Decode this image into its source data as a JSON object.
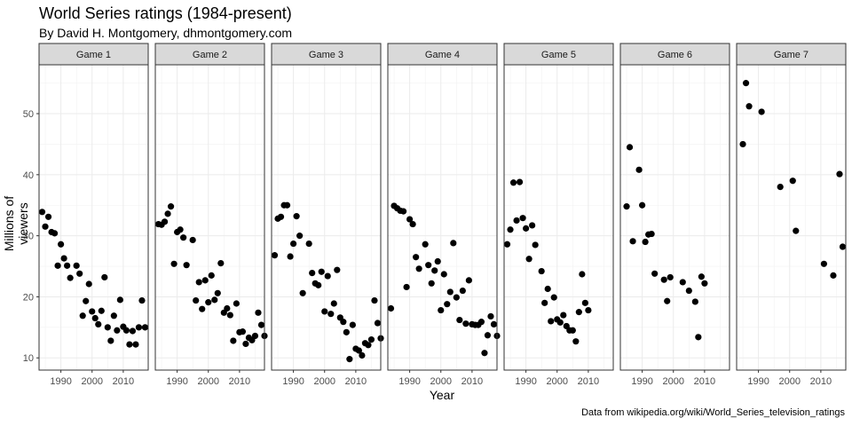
{
  "title": "World Series ratings (1984-present)",
  "subtitle": "By David H. Montgomery, dhmontgomery.com",
  "caption": "Data from wikipedia.org/wiki/World_Series_television_ratings",
  "chart_data": {
    "type": "scatter",
    "title": "World Series ratings (1984-present)",
    "xlabel": "Year",
    "ylabel": "Millions of viewers",
    "xlim": [
      1983,
      2018
    ],
    "ylim": [
      8,
      58
    ],
    "x_ticks": [
      1990,
      2000,
      2010
    ],
    "y_ticks": [
      10,
      20,
      30,
      40,
      50
    ],
    "grid": true,
    "facets": [
      {
        "name": "Game 1",
        "points": [
          [
            1984,
            33.9
          ],
          [
            1985,
            31.5
          ],
          [
            1986,
            33.1
          ],
          [
            1987,
            30.6
          ],
          [
            1988,
            30.4
          ],
          [
            1989,
            25.1
          ],
          [
            1990,
            28.6
          ],
          [
            1991,
            26.3
          ],
          [
            1992,
            25.1
          ],
          [
            1993,
            23.1
          ],
          [
            1995,
            25.1
          ],
          [
            1996,
            23.8
          ],
          [
            1997,
            16.9
          ],
          [
            1998,
            19.3
          ],
          [
            1999,
            22.1
          ],
          [
            2000,
            17.6
          ],
          [
            2001,
            16.5
          ],
          [
            2002,
            15.5
          ],
          [
            2003,
            17.7
          ],
          [
            2004,
            23.2
          ],
          [
            2005,
            15
          ],
          [
            2006,
            12.8
          ],
          [
            2007,
            16.9
          ],
          [
            2008,
            14.5
          ],
          [
            2009,
            19.5
          ],
          [
            2010,
            15.1
          ],
          [
            2011,
            14.5
          ],
          [
            2012,
            12.2
          ],
          [
            2013,
            14.4
          ],
          [
            2014,
            12.2
          ],
          [
            2015,
            15
          ],
          [
            2016,
            19.4
          ],
          [
            2017,
            15
          ]
        ]
      },
      {
        "name": "Game 2",
        "points": [
          [
            1984,
            31.9
          ],
          [
            1985,
            31.8
          ],
          [
            1986,
            32.3
          ],
          [
            1987,
            33.6
          ],
          [
            1988,
            34.8
          ],
          [
            1989,
            25.4
          ],
          [
            1990,
            30.6
          ],
          [
            1991,
            31
          ],
          [
            1992,
            29.7
          ],
          [
            1993,
            25.2
          ],
          [
            1995,
            29.3
          ],
          [
            1996,
            19.4
          ],
          [
            1997,
            22.4
          ],
          [
            1998,
            18
          ],
          [
            1999,
            22.7
          ],
          [
            2000,
            19.1
          ],
          [
            2001,
            23.5
          ],
          [
            2002,
            19.5
          ],
          [
            2003,
            20.6
          ],
          [
            2004,
            25.5
          ],
          [
            2005,
            17.4
          ],
          [
            2006,
            18.1
          ],
          [
            2007,
            17
          ],
          [
            2008,
            12.8
          ],
          [
            2009,
            18.9
          ],
          [
            2010,
            14.2
          ],
          [
            2011,
            14.3
          ],
          [
            2012,
            12.3
          ],
          [
            2013,
            13.3
          ],
          [
            2014,
            12.9
          ],
          [
            2015,
            13.6
          ],
          [
            2016,
            17.4
          ],
          [
            2017,
            15.4
          ],
          [
            2018,
            13.6
          ]
        ]
      },
      {
        "name": "Game 3",
        "points": [
          [
            1984,
            26.8
          ],
          [
            1985,
            32.8
          ],
          [
            1986,
            33.1
          ],
          [
            1987,
            35
          ],
          [
            1988,
            35
          ],
          [
            1989,
            26.6
          ],
          [
            1990,
            28.7
          ],
          [
            1991,
            33.2
          ],
          [
            1992,
            30
          ],
          [
            1993,
            20.6
          ],
          [
            1995,
            28.7
          ],
          [
            1996,
            23.9
          ],
          [
            1997,
            22.2
          ],
          [
            1998,
            21.9
          ],
          [
            1999,
            24.1
          ],
          [
            2000,
            17.6
          ],
          [
            2001,
            23.4
          ],
          [
            2002,
            17.2
          ],
          [
            2003,
            18.9
          ],
          [
            2004,
            24.4
          ],
          [
            2005,
            16.6
          ],
          [
            2006,
            15.9
          ],
          [
            2007,
            14.2
          ],
          [
            2008,
            9.8
          ],
          [
            2009,
            15.4
          ],
          [
            2010,
            11.5
          ],
          [
            2011,
            11.2
          ],
          [
            2012,
            10.4
          ],
          [
            2013,
            12.4
          ],
          [
            2014,
            12.1
          ],
          [
            2015,
            13
          ],
          [
            2016,
            19.4
          ],
          [
            2017,
            15.7
          ],
          [
            2018,
            13.2
          ]
        ]
      },
      {
        "name": "Game 4",
        "points": [
          [
            1984,
            18.1
          ],
          [
            1985,
            34.9
          ],
          [
            1986,
            34.5
          ],
          [
            1987,
            34.1
          ],
          [
            1988,
            34
          ],
          [
            1989,
            21.6
          ],
          [
            1990,
            32.7
          ],
          [
            1991,
            31.9
          ],
          [
            1992,
            26.5
          ],
          [
            1993,
            24.6
          ],
          [
            1995,
            28.6
          ],
          [
            1996,
            25.2
          ],
          [
            1997,
            22.2
          ],
          [
            1998,
            24.3
          ],
          [
            1999,
            25.8
          ],
          [
            2000,
            17.8
          ],
          [
            2001,
            23.7
          ],
          [
            2002,
            18.8
          ],
          [
            2003,
            20.8
          ],
          [
            2004,
            28.8
          ],
          [
            2005,
            19.9
          ],
          [
            2006,
            16.2
          ],
          [
            2007,
            21
          ],
          [
            2008,
            15.6
          ],
          [
            2009,
            22.7
          ],
          [
            2010,
            15.5
          ],
          [
            2011,
            15.4
          ],
          [
            2012,
            15.4
          ],
          [
            2013,
            15.9
          ],
          [
            2014,
            10.8
          ],
          [
            2015,
            13.7
          ],
          [
            2016,
            16.8
          ],
          [
            2017,
            15.5
          ],
          [
            2018,
            13.6
          ]
        ]
      },
      {
        "name": "Game 5",
        "points": [
          [
            1984,
            28.6
          ],
          [
            1985,
            31
          ],
          [
            1986,
            38.7
          ],
          [
            1987,
            32.5
          ],
          [
            1988,
            38.8
          ],
          [
            1989,
            32.9
          ],
          [
            1990,
            31.2
          ],
          [
            1991,
            26.2
          ],
          [
            1992,
            31.7
          ],
          [
            1993,
            28.5
          ],
          [
            1995,
            24.2
          ],
          [
            1996,
            19
          ],
          [
            1997,
            21.3
          ],
          [
            1998,
            16
          ],
          [
            1999,
            19.9
          ],
          [
            2000,
            16.3
          ],
          [
            2001,
            15.8
          ],
          [
            2002,
            17
          ],
          [
            2003,
            15.2
          ],
          [
            2004,
            14.5
          ],
          [
            2005,
            14.5
          ],
          [
            2006,
            12.7
          ],
          [
            2007,
            17.5
          ],
          [
            2008,
            23.7
          ],
          [
            2009,
            19
          ],
          [
            2010,
            17.8
          ]
        ]
      },
      {
        "name": "Game 6",
        "points": [
          [
            1985,
            34.8
          ],
          [
            1986,
            44.5
          ],
          [
            1987,
            29.1
          ],
          [
            1989,
            40.8
          ],
          [
            1990,
            35
          ],
          [
            1991,
            29
          ],
          [
            1992,
            30.2
          ],
          [
            1993,
            30.3
          ],
          [
            1994,
            23.8
          ],
          [
            1997,
            22.8
          ],
          [
            1998,
            19.3
          ],
          [
            1999,
            23.2
          ],
          [
            2003,
            22.4
          ],
          [
            2005,
            21
          ],
          [
            2007,
            19.2
          ],
          [
            2008,
            13.4
          ],
          [
            2009,
            23.3
          ],
          [
            2010,
            22.2
          ]
        ]
      },
      {
        "name": "Game 7",
        "points": [
          [
            1985,
            45
          ],
          [
            1986,
            55
          ],
          [
            1987,
            51.2
          ],
          [
            1991,
            50.3
          ],
          [
            1997,
            38
          ],
          [
            2001,
            39
          ],
          [
            2002,
            30.8
          ],
          [
            2011,
            25.4
          ],
          [
            2014,
            23.5
          ],
          [
            2016,
            40.1
          ],
          [
            2017,
            28.2
          ]
        ]
      }
    ]
  }
}
